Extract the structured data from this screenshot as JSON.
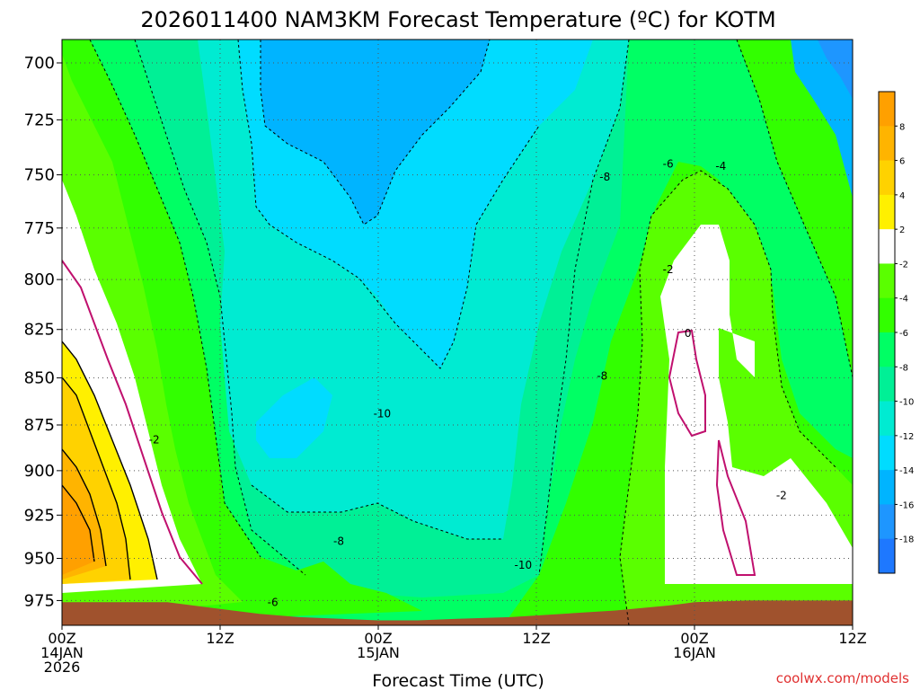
{
  "chart_data": {
    "type": "heatmap",
    "title": "2026011400 NAM3KM Forecast Temperature (ºC) for KOTM",
    "xlabel": "Forecast Time (UTC)",
    "ylabel": "",
    "y_axis_log_pressure": true,
    "ylim": [
      990,
      690
    ],
    "y_ticks": [
      "700",
      "725",
      "750",
      "775",
      "800",
      "825",
      "850",
      "875",
      "900",
      "925",
      "950",
      "975"
    ],
    "x_ticks": [
      {
        "t": 0,
        "lines": [
          "00Z",
          "14JAN",
          "2026"
        ]
      },
      {
        "t": 12,
        "lines": [
          "12Z"
        ]
      },
      {
        "t": 24,
        "lines": [
          "00Z",
          "15JAN"
        ]
      },
      {
        "t": 36,
        "lines": [
          "12Z"
        ]
      },
      {
        "t": 48,
        "lines": [
          "00Z",
          "16JAN"
        ]
      },
      {
        "t": 60,
        "lines": [
          "12Z"
        ]
      }
    ],
    "xlim": [
      0,
      60
    ],
    "grid": true,
    "colorbar": {
      "levels": [
        -20,
        -18,
        -16,
        -14,
        -12,
        -10,
        -8,
        -6,
        -4,
        -2,
        2,
        4,
        6,
        8,
        10
      ],
      "labels": [
        "8",
        "6",
        "4",
        "2",
        "-2",
        "-4",
        "-6",
        "-8",
        "-10",
        "-12",
        "-14",
        "-16",
        "-18"
      ],
      "colors": [
        "#1e78ff",
        "#1e96ff",
        "#00b4ff",
        "#00dcff",
        "#00ebd2",
        "#00f096",
        "#00ff64",
        "#32ff00",
        "#5aff00",
        "#ffffff",
        "#fff000",
        "#ffd200",
        "#ffb400",
        "#ffa000"
      ]
    },
    "terrain_pressure_by_hour": [
      [
        0,
        976
      ],
      [
        8,
        976
      ],
      [
        12,
        980
      ],
      [
        15,
        983
      ],
      [
        18,
        985
      ],
      [
        24,
        987
      ],
      [
        27,
        987
      ],
      [
        30,
        986
      ],
      [
        34,
        985
      ],
      [
        38,
        983
      ],
      [
        42,
        981
      ],
      [
        46,
        978
      ],
      [
        48,
        976
      ],
      [
        52,
        975
      ],
      [
        60,
        975
      ]
    ],
    "contour_labels": [
      {
        "text": "-2",
        "t": 7.0,
        "p": 883
      },
      {
        "text": "-10",
        "t": 24.3,
        "p": 869
      },
      {
        "text": "-8",
        "t": 21.0,
        "p": 940
      },
      {
        "text": "-10",
        "t": 35.0,
        "p": 954
      },
      {
        "text": "-6",
        "t": 16.0,
        "p": 976
      },
      {
        "text": "-8",
        "t": 41.0,
        "p": 849
      },
      {
        "text": "-8",
        "t": 41.2,
        "p": 751
      },
      {
        "text": "-6",
        "t": 46.0,
        "p": 745
      },
      {
        "text": "-4",
        "t": 50.0,
        "p": 746
      },
      {
        "text": "-2",
        "t": 46.0,
        "p": 795
      },
      {
        "text": "0",
        "t": 47.5,
        "p": 827
      },
      {
        "text": "-2",
        "t": 54.6,
        "p": 914
      }
    ]
  },
  "watermark": "coolwx.com/models"
}
